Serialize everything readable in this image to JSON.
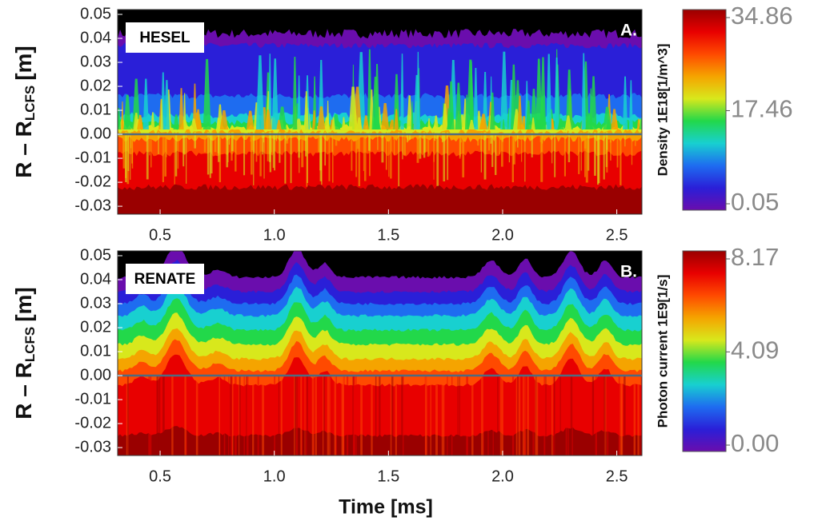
{
  "chart_data": [
    {
      "type": "heatmap",
      "label": "HESEL",
      "panel_label": "A.",
      "ylabel": "R – R",
      "ylabel_subscript": "LCFS",
      "ylabel_unit": "[m]",
      "xlim": [
        0.314,
        2.61
      ],
      "xticks": [
        0.5,
        {
          "value": 1,
          "label": "1.0"
        },
        1.5,
        {
          "value": 2,
          "label": "2.0"
        },
        2.5
      ],
      "ylim": [
        -0.0333,
        0.052
      ],
      "yticks": [
        0.05,
        0.04,
        0.03,
        0.02,
        0.01,
        {
          "value": 0,
          "label": "0.00"
        },
        -0.01,
        -0.02,
        -0.03
      ],
      "hline": 0,
      "colorbar_label": "Density 1E18[1/m^3]",
      "clim": [
        0.05,
        34.86
      ],
      "cticks": [
        34.86,
        17.46,
        0.05
      ],
      "colormap": [
        "#6a0dad",
        "#2a1fd8",
        "#1e6cf0",
        "#18d0d0",
        "#22d84a",
        "#d8e81c",
        "#f5a400",
        "#ff4a00",
        "#e80000",
        "#9a0000"
      ]
    },
    {
      "type": "heatmap",
      "label": "RENATE",
      "panel_label": "B.",
      "ylabel": "R – R",
      "ylabel_subscript": "LCFS",
      "ylabel_unit": "[m]",
      "xlabel": "Time [ms]",
      "xlim": [
        0.314,
        2.61
      ],
      "xticks": [
        0.5,
        {
          "value": 1,
          "label": "1.0"
        },
        1.5,
        {
          "value": 2,
          "label": "2.0"
        },
        2.5
      ],
      "ylim": [
        -0.0333,
        0.052
      ],
      "yticks": [
        0.05,
        0.04,
        0.03,
        0.02,
        0.01,
        {
          "value": 0,
          "label": "0.00"
        },
        -0.01,
        -0.02,
        -0.03
      ],
      "hline": 0,
      "colorbar_label": "Photon current 1E9[1/s]",
      "clim": [
        0,
        8.17
      ],
      "cticks": [
        8.17,
        4.09,
        {
          "value": 0,
          "label": "0.00"
        }
      ],
      "colormap": [
        "#6a0dad",
        "#2a1fd8",
        "#1e6cf0",
        "#18d0d0",
        "#22d84a",
        "#d8e81c",
        "#f5a400",
        "#ff4a00",
        "#e80000",
        "#9a0000"
      ]
    }
  ]
}
